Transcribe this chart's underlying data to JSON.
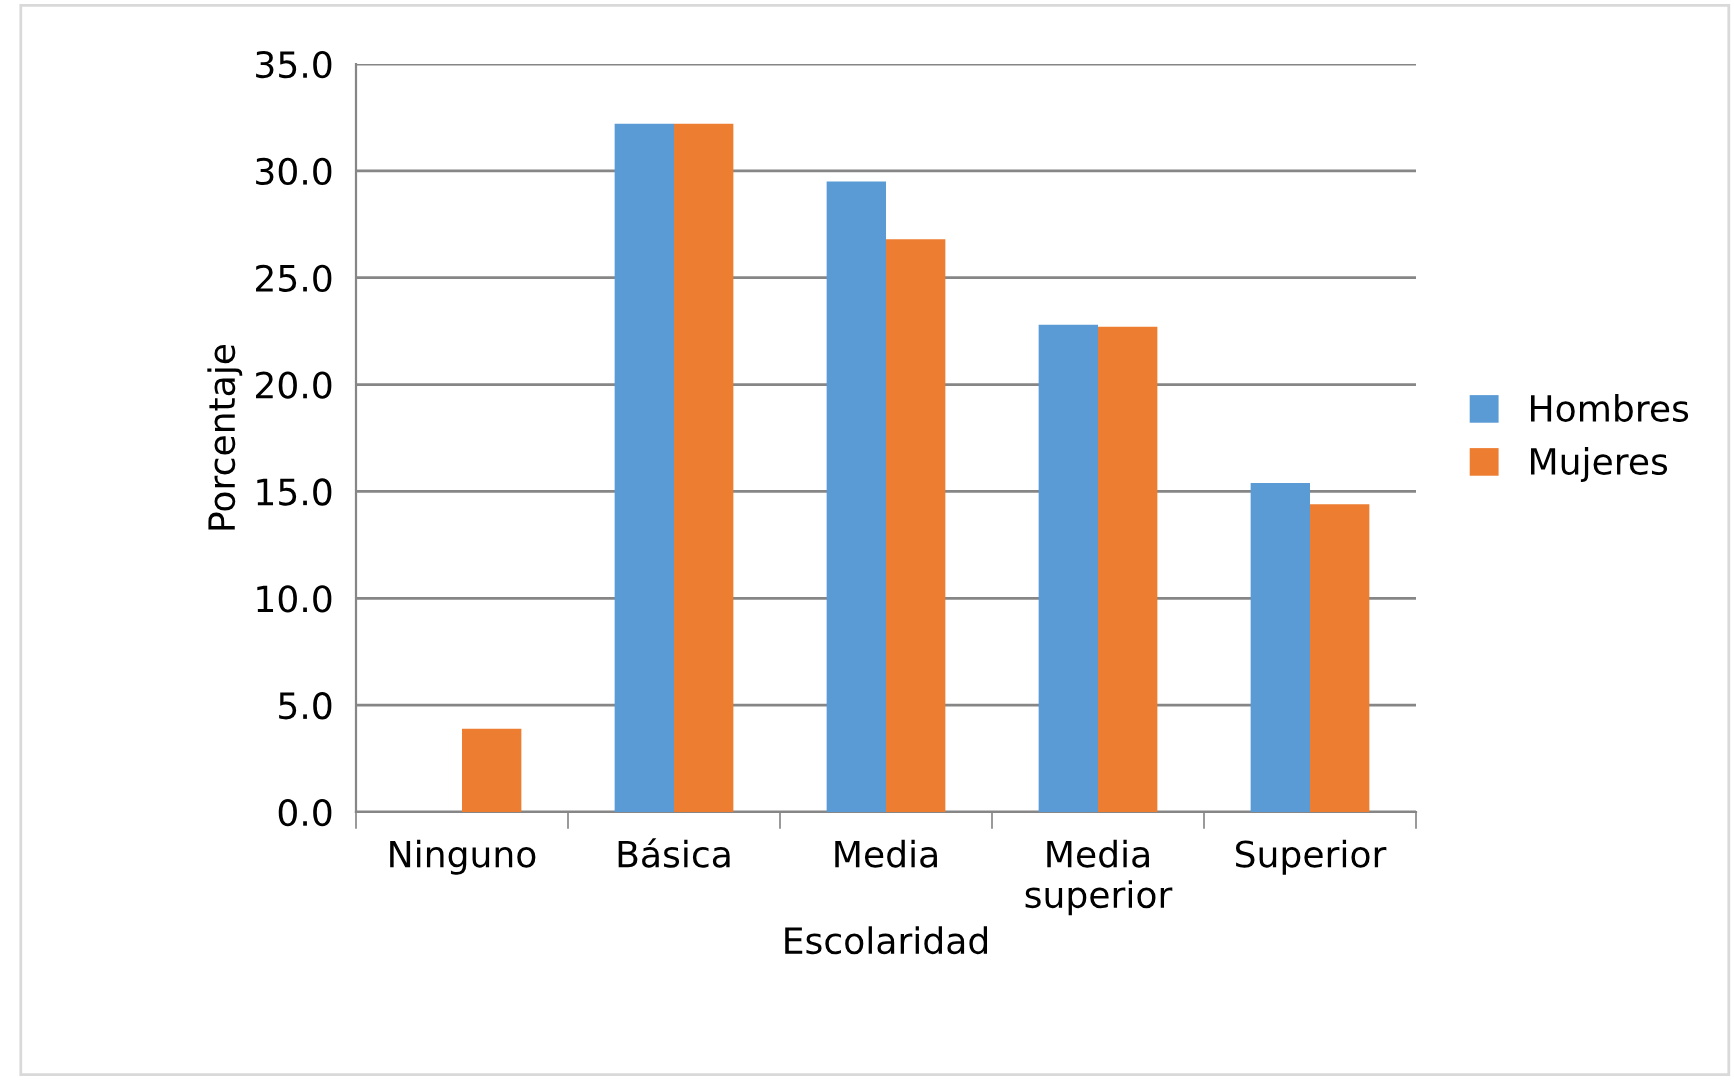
{
  "chart_data": {
    "type": "bar",
    "xlabel": "Escolaridad",
    "ylabel": "Porcentaje",
    "categories": [
      "Ninguno",
      "Básica",
      "Media",
      "Media\nsuperior",
      "Superior"
    ],
    "series": [
      {
        "name": "Hombres",
        "color": "#5b9bd5",
        "values": [
          0,
          32.2,
          29.5,
          22.8,
          15.4
        ]
      },
      {
        "name": "Mujeres",
        "color": "#ed7d31",
        "values": [
          3.9,
          32.2,
          26.8,
          22.7,
          14.4
        ]
      }
    ],
    "ylim": [
      0,
      35
    ],
    "yticks": [
      {
        "value": 0,
        "label": "0.0"
      },
      {
        "value": 5,
        "label": "5.0"
      },
      {
        "value": 10,
        "label": "10.0"
      },
      {
        "value": 15,
        "label": "15.0"
      },
      {
        "value": 20,
        "label": "20.0"
      },
      {
        "value": 25,
        "label": "25.0"
      },
      {
        "value": 30,
        "label": "30.0"
      },
      {
        "value": 35,
        "label": "35.0"
      }
    ],
    "grid": "y",
    "legend": "right"
  }
}
